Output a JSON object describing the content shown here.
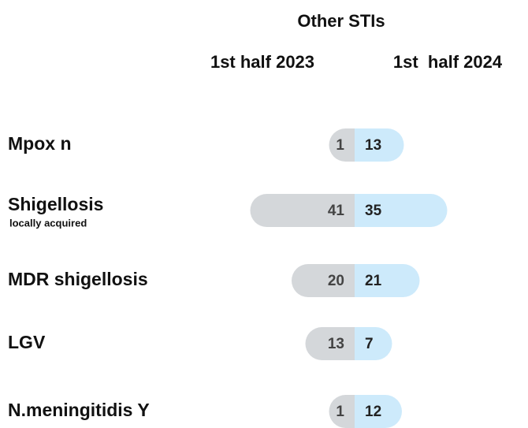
{
  "chart_data": {
    "type": "bar",
    "title": "Other STIs",
    "categories": [
      "Mpox n",
      "Shigellosis",
      "MDR shigellosis",
      "LGV",
      "N.meningitidis Y"
    ],
    "category_notes": [
      null,
      "locally acquired",
      null,
      null,
      null
    ],
    "series": [
      {
        "name": "1st half 2023",
        "color": "#d4d7da",
        "values": [
          1,
          41,
          20,
          13,
          1
        ]
      },
      {
        "name": "1st  half 2024",
        "color": "#cdeafb",
        "values": [
          13,
          35,
          21,
          7,
          12
        ]
      }
    ]
  }
}
